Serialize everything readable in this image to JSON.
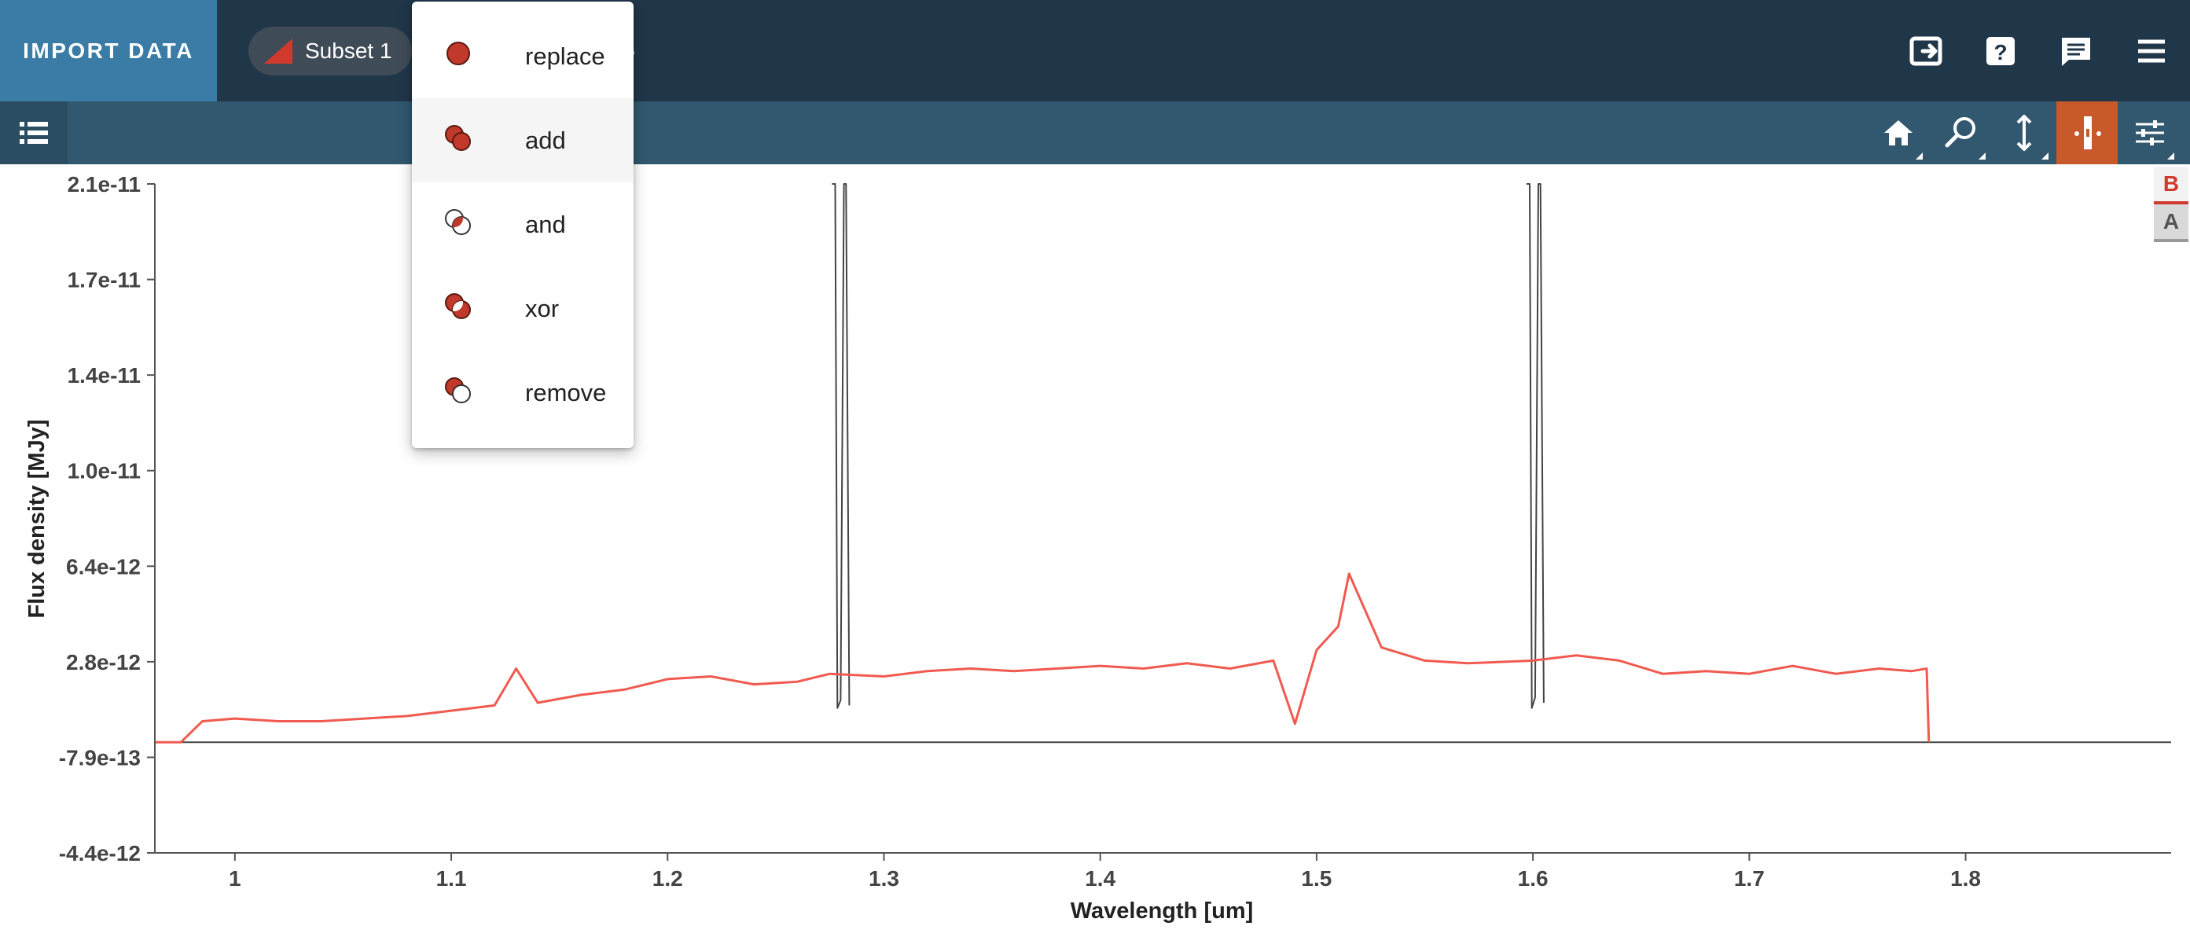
{
  "app_bar": {
    "import_label": "IMPORT DATA",
    "subset_label": "Subset 1",
    "icons": [
      "export-icon",
      "help-icon",
      "feedback-icon",
      "menu-icon"
    ]
  },
  "viewer_toolbar": {
    "icons": [
      "layers-list-icon",
      "home-icon",
      "zoom-icon",
      "vertical-pan-icon",
      "spectral-region-icon",
      "settings-sliders-icon"
    ],
    "active_tool": "spectral-region-icon",
    "active_color": "#c7592a"
  },
  "mode_menu": {
    "items": [
      {
        "label": "replace",
        "icon": "replace-mode-icon"
      },
      {
        "label": "add",
        "icon": "add-mode-icon"
      },
      {
        "label": "and",
        "icon": "and-mode-icon"
      },
      {
        "label": "xor",
        "icon": "xor-mode-icon"
      },
      {
        "label": "remove",
        "icon": "remove-mode-icon"
      }
    ],
    "highlighted": "add"
  },
  "layer_badges": [
    {
      "label": "B",
      "color": "#d0392b"
    },
    {
      "label": "A",
      "color": "#555555"
    }
  ],
  "colors": {
    "subset": "#f05a50",
    "data_line": "#444444",
    "app_bar": "#203649",
    "import_button": "#3a7ca5",
    "toolbar": "#31586f"
  },
  "chart_data": {
    "type": "line",
    "xlabel": "Wavelength [um]",
    "ylabel": "Flux density [MJy]",
    "xlim": [
      0.963,
      1.895
    ],
    "ylim": [
      -4.4e-12,
      2.1e-11
    ],
    "x_ticks": [
      "1",
      "1.1",
      "1.2",
      "1.3",
      "1.4",
      "1.5",
      "1.6",
      "1.7",
      "1.8"
    ],
    "y_ticks": [
      "2.1e-11",
      "1.7e-11",
      "1.4e-11",
      "1.0e-11",
      "6.4e-12",
      "2.8e-12",
      "-7.9e-13",
      "-4.4e-12"
    ],
    "series": [
      {
        "color": "#444444",
        "note_values": "baseline flux outside coverage",
        "x": [
          0.963,
          0.975,
          1.782,
          1.895
        ],
        "y": [
          -2e-13,
          -2e-13,
          -2e-13,
          -2e-13
        ]
      },
      {
        "color": "#444444",
        "x": [
          1.276,
          1.2775,
          1.2785,
          1.28,
          1.2815,
          1.2825,
          1.284
        ],
        "y": [
          2.1e-11,
          2.1e-11,
          1.1e-12,
          1.4e-12,
          2.1e-11,
          2.1e-11,
          1.2e-12
        ]
      },
      {
        "color": "#444444",
        "x": [
          1.597,
          1.5985,
          1.5995,
          1.601,
          1.6025,
          1.6035,
          1.605
        ],
        "y": [
          2.1e-11,
          2.1e-11,
          1.1e-12,
          1.5e-12,
          2.1e-11,
          2.1e-11,
          1.3e-12
        ]
      },
      {
        "color": "#f05a50",
        "x": [
          0.963,
          0.975,
          0.985,
          1.0,
          1.02,
          1.04,
          1.06,
          1.08,
          1.1,
          1.12,
          1.13,
          1.14,
          1.16,
          1.18,
          1.2,
          1.22,
          1.24,
          1.26,
          1.275,
          1.3,
          1.32,
          1.34,
          1.36,
          1.38,
          1.4,
          1.42,
          1.44,
          1.46,
          1.48,
          1.49,
          1.5,
          1.51,
          1.515,
          1.53,
          1.55,
          1.57,
          1.6,
          1.62,
          1.64,
          1.66,
          1.68,
          1.7,
          1.72,
          1.74,
          1.76,
          1.775,
          1.782,
          1.783
        ],
        "y": [
          -2e-13,
          -2e-13,
          6e-13,
          7e-13,
          6e-13,
          6e-13,
          7e-13,
          8e-13,
          1e-12,
          1.2e-12,
          2.6e-12,
          1.3e-12,
          1.6e-12,
          1.8e-12,
          2.2e-12,
          2.3e-12,
          2e-12,
          2.1e-12,
          2.4e-12,
          2.3e-12,
          2.5e-12,
          2.6e-12,
          2.5e-12,
          2.6e-12,
          2.7e-12,
          2.6e-12,
          2.8e-12,
          2.6e-12,
          2.9e-12,
          5e-13,
          3.3e-12,
          4.2e-12,
          6.2e-12,
          3.4e-12,
          2.9e-12,
          2.8e-12,
          2.9e-12,
          3.1e-12,
          2.9e-12,
          2.4e-12,
          2.5e-12,
          2.4e-12,
          2.7e-12,
          2.4e-12,
          2.6e-12,
          2.5e-12,
          2.6e-12,
          -2e-13
        ]
      }
    ],
    "grid": false,
    "legend": "none"
  }
}
